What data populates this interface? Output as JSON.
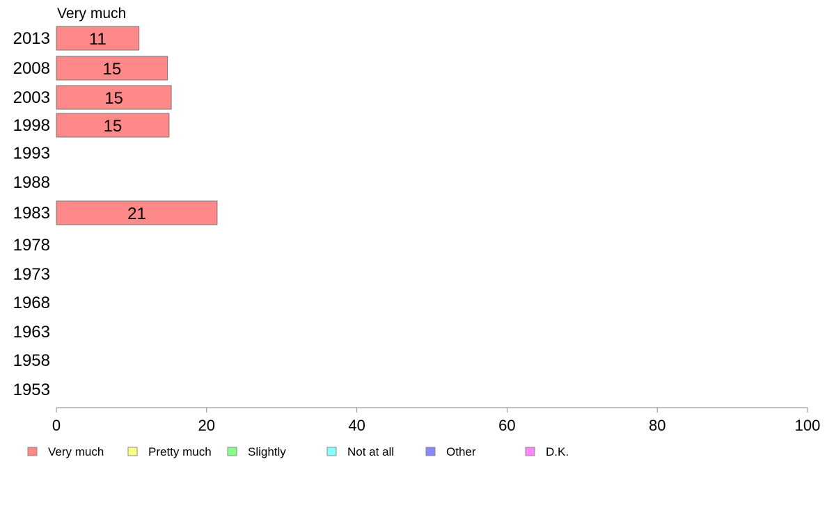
{
  "chart_data": {
    "type": "bar",
    "orientation": "horizontal",
    "panel_title": "Very much",
    "categories": [
      "2013",
      "2008",
      "2003",
      "1998",
      "1993",
      "1988",
      "1983",
      "1978",
      "1973",
      "1968",
      "1963",
      "1958",
      "1953"
    ],
    "series": [
      {
        "name": "Very much",
        "color": "#ff8888",
        "values": [
          11,
          14.8,
          15.3,
          15,
          null,
          null,
          21.4,
          null,
          null,
          null,
          null,
          null,
          null
        ],
        "labels": [
          "11",
          "15",
          "15",
          "15",
          "",
          "",
          "21",
          "",
          "",
          "",
          "",
          "",
          ""
        ]
      }
    ],
    "xlim": [
      0,
      100
    ],
    "xticks": [
      0,
      20,
      40,
      60,
      80,
      100
    ],
    "grid": false,
    "legend_position": "bottom",
    "legend": [
      {
        "label": "Very much",
        "color": "#ff8888"
      },
      {
        "label": "Pretty much",
        "color": "#ffff88"
      },
      {
        "label": "Slightly",
        "color": "#88ff88"
      },
      {
        "label": "Not at all",
        "color": "#88ffff"
      },
      {
        "label": "Other",
        "color": "#8888ff"
      },
      {
        "label": "D.K.",
        "color": "#ff88ff"
      }
    ]
  }
}
